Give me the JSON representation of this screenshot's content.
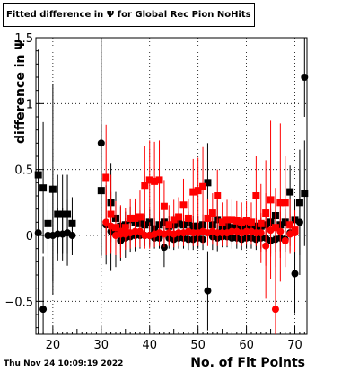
{
  "chart_data": {
    "type": "scatter",
    "title_prefix": "Fitted difference in",
    "title_symbol": "Ψ",
    "title_suffix": "for Global Rec Pion NoHits",
    "ylabel": "difference in  Ψ",
    "xlabel": "No. of Fit Points",
    "xlim": [
      16.5,
      72.5
    ],
    "ylim": [
      -0.75,
      1.5
    ],
    "x_ticks": [
      20,
      30,
      40,
      50,
      60,
      70
    ],
    "y_ticks": [
      -0.5,
      0,
      0.5,
      1,
      1.5
    ],
    "y_tick_labels": [
      "−0.5",
      "0",
      "0.5",
      "1",
      "1.5"
    ],
    "grid": true,
    "series": [
      {
        "marker": "square",
        "color": "#000000",
        "points": [
          [
            17,
            0.46,
            0.95
          ],
          [
            18,
            0.36,
            0.5
          ],
          [
            19,
            0.09,
            0.2
          ],
          [
            20,
            0.35,
            0.8
          ],
          [
            21,
            0.16,
            0.3
          ],
          [
            22,
            0.16,
            0.3
          ],
          [
            23,
            0.16,
            0.3
          ],
          [
            24,
            0.09,
            0.2
          ],
          [
            30,
            0.34,
            0.5
          ],
          [
            32,
            0.25,
            0.3
          ],
          [
            33,
            0.13,
            0.2
          ],
          [
            34,
            0.07,
            0.15
          ],
          [
            35,
            0.08,
            0.1
          ],
          [
            36,
            0.12,
            0.1
          ],
          [
            37,
            0.1,
            0.15
          ],
          [
            38,
            0.09,
            0.1
          ],
          [
            39,
            0.08,
            0.08
          ],
          [
            40,
            0.1,
            0.1
          ],
          [
            41,
            0.05,
            0.08
          ],
          [
            42,
            0.08,
            0.1
          ],
          [
            43,
            0.1,
            0.1
          ],
          [
            44,
            0.07,
            0.08
          ],
          [
            45,
            0.08,
            0.08
          ],
          [
            46,
            0.09,
            0.08
          ],
          [
            47,
            0.08,
            0.08
          ],
          [
            48,
            0.1,
            0.08
          ],
          [
            49,
            0.07,
            0.08
          ],
          [
            50,
            0.07,
            0.08
          ],
          [
            51,
            0.08,
            0.08
          ],
          [
            52,
            0.4,
            0.3
          ],
          [
            53,
            0.08,
            0.08
          ],
          [
            54,
            0.12,
            0.15
          ],
          [
            55,
            0.06,
            0.06
          ],
          [
            56,
            0.07,
            0.06
          ],
          [
            57,
            0.06,
            0.06
          ],
          [
            58,
            0.07,
            0.06
          ],
          [
            59,
            0.07,
            0.06
          ],
          [
            60,
            0.06,
            0.06
          ],
          [
            61,
            0.07,
            0.06
          ],
          [
            62,
            0.07,
            0.06
          ],
          [
            63,
            0.07,
            0.06
          ],
          [
            64,
            0.08,
            0.1
          ],
          [
            65,
            0.1,
            0.1
          ],
          [
            66,
            0.15,
            0.1
          ],
          [
            67,
            0.08,
            0.1
          ],
          [
            68,
            0.1,
            0.1
          ],
          [
            69,
            0.33,
            0.2
          ],
          [
            70,
            0.12,
            0.15
          ],
          [
            71,
            0.25,
            0.4
          ],
          [
            72,
            0.32,
            0.4
          ]
        ]
      },
      {
        "marker": "circle",
        "color": "#000000",
        "points": [
          [
            17,
            0.02,
            0.85
          ],
          [
            18,
            -0.56,
            0.4
          ],
          [
            19,
            0.0,
            0.2
          ],
          [
            20,
            0.0,
            0.35
          ],
          [
            21,
            0.01,
            0.2
          ],
          [
            22,
            0.01,
            0.2
          ],
          [
            23,
            0.02,
            0.25
          ],
          [
            24,
            0.0,
            0.15
          ],
          [
            30,
            0.7,
            0.85
          ],
          [
            31,
            0.08,
            0.3
          ],
          [
            32,
            0.03,
            0.3
          ],
          [
            33,
            0.01,
            0.25
          ],
          [
            34,
            -0.04,
            0.15
          ],
          [
            35,
            -0.02,
            0.15
          ],
          [
            36,
            -0.01,
            0.12
          ],
          [
            37,
            0.0,
            0.12
          ],
          [
            38,
            0.0,
            0.1
          ],
          [
            39,
            0.0,
            0.08
          ],
          [
            40,
            0.0,
            0.08
          ],
          [
            41,
            -0.02,
            0.08
          ],
          [
            42,
            -0.02,
            0.08
          ],
          [
            43,
            -0.09,
            0.15
          ],
          [
            44,
            -0.02,
            0.08
          ],
          [
            45,
            -0.03,
            0.08
          ],
          [
            46,
            -0.02,
            0.08
          ],
          [
            47,
            -0.02,
            0.08
          ],
          [
            48,
            -0.03,
            0.08
          ],
          [
            49,
            -0.03,
            0.08
          ],
          [
            50,
            -0.02,
            0.08
          ],
          [
            51,
            -0.03,
            0.08
          ],
          [
            52,
            -0.42,
            0.3
          ],
          [
            53,
            -0.01,
            0.1
          ],
          [
            54,
            -0.02,
            0.1
          ],
          [
            55,
            -0.01,
            0.08
          ],
          [
            56,
            -0.01,
            0.08
          ],
          [
            57,
            -0.02,
            0.08
          ],
          [
            58,
            -0.02,
            0.08
          ],
          [
            59,
            -0.03,
            0.08
          ],
          [
            60,
            -0.02,
            0.08
          ],
          [
            61,
            -0.02,
            0.08
          ],
          [
            62,
            -0.03,
            0.08
          ],
          [
            63,
            -0.02,
            0.08
          ],
          [
            64,
            -0.02,
            0.1
          ],
          [
            65,
            -0.04,
            0.1
          ],
          [
            66,
            -0.03,
            0.1
          ],
          [
            67,
            -0.02,
            0.1
          ],
          [
            68,
            -0.03,
            0.1
          ],
          [
            69,
            0.02,
            0.1
          ],
          [
            70,
            -0.29,
            0.3
          ],
          [
            71,
            0.1,
            0.4
          ],
          [
            72,
            1.2,
            0.3
          ]
        ]
      },
      {
        "marker": "square",
        "color": "#ff0000",
        "points": [
          [
            31,
            0.44,
            0.4
          ],
          [
            32,
            0.16,
            0.3
          ],
          [
            33,
            0.06,
            0.2
          ],
          [
            34,
            0.03,
            0.2
          ],
          [
            35,
            0.06,
            0.15
          ],
          [
            36,
            0.13,
            0.15
          ],
          [
            37,
            0.13,
            0.15
          ],
          [
            38,
            0.14,
            0.2
          ],
          [
            39,
            0.38,
            0.3
          ],
          [
            40,
            0.42,
            0.3
          ],
          [
            41,
            0.41,
            0.3
          ],
          [
            42,
            0.42,
            0.3
          ],
          [
            43,
            0.22,
            0.2
          ],
          [
            44,
            0.08,
            0.15
          ],
          [
            45,
            0.12,
            0.15
          ],
          [
            46,
            0.14,
            0.15
          ],
          [
            47,
            0.23,
            0.2
          ],
          [
            48,
            0.13,
            0.15
          ],
          [
            49,
            0.33,
            0.25
          ],
          [
            50,
            0.34,
            0.25
          ],
          [
            51,
            0.37,
            0.3
          ],
          [
            52,
            0.13,
            0.15
          ],
          [
            53,
            0.17,
            0.15
          ],
          [
            54,
            0.3,
            0.2
          ],
          [
            55,
            0.1,
            0.15
          ],
          [
            56,
            0.12,
            0.15
          ],
          [
            57,
            0.12,
            0.15
          ],
          [
            58,
            0.11,
            0.15
          ],
          [
            59,
            0.1,
            0.15
          ],
          [
            60,
            0.11,
            0.15
          ],
          [
            61,
            0.1,
            0.15
          ],
          [
            62,
            0.3,
            0.3
          ],
          [
            63,
            0.09,
            0.3
          ],
          [
            64,
            0.17,
            0.4
          ],
          [
            65,
            0.27,
            0.6
          ],
          [
            66,
            0.06,
            0.3
          ],
          [
            67,
            0.25,
            0.6
          ],
          [
            68,
            0.25,
            0.35
          ],
          [
            69,
            0.08,
            0.2
          ],
          [
            70,
            0.04,
            0.15
          ]
        ]
      },
      {
        "marker": "circle",
        "color": "#ff0000",
        "points": [
          [
            31,
            0.1,
            0.25
          ],
          [
            32,
            0.07,
            0.2
          ],
          [
            33,
            0.0,
            0.15
          ],
          [
            34,
            0.01,
            0.15
          ],
          [
            35,
            0.01,
            0.12
          ],
          [
            36,
            0.02,
            0.12
          ],
          [
            37,
            0.03,
            0.12
          ],
          [
            38,
            0.03,
            0.12
          ],
          [
            39,
            0.0,
            0.1
          ],
          [
            40,
            0.0,
            0.1
          ],
          [
            41,
            0.01,
            0.1
          ],
          [
            42,
            0.02,
            0.1
          ],
          [
            43,
            0.01,
            0.1
          ],
          [
            44,
            0.02,
            0.1
          ],
          [
            45,
            0.01,
            0.1
          ],
          [
            46,
            0.02,
            0.1
          ],
          [
            47,
            0.02,
            0.1
          ],
          [
            48,
            0.03,
            0.1
          ],
          [
            49,
            0.02,
            0.1
          ],
          [
            50,
            0.02,
            0.1
          ],
          [
            51,
            0.03,
            0.1
          ],
          [
            52,
            0.02,
            0.1
          ],
          [
            53,
            0.03,
            0.1
          ],
          [
            54,
            0.02,
            0.1
          ],
          [
            55,
            0.02,
            0.1
          ],
          [
            56,
            0.02,
            0.1
          ],
          [
            57,
            0.03,
            0.1
          ],
          [
            58,
            0.03,
            0.1
          ],
          [
            59,
            0.02,
            0.1
          ],
          [
            60,
            0.03,
            0.1
          ],
          [
            61,
            0.03,
            0.1
          ],
          [
            62,
            0.02,
            0.1
          ],
          [
            63,
            0.02,
            0.15
          ],
          [
            64,
            -0.08,
            0.4
          ],
          [
            65,
            0.04,
            0.2
          ],
          [
            66,
            -0.56,
            0.5
          ],
          [
            67,
            0.03,
            0.2
          ],
          [
            68,
            -0.04,
            0.2
          ],
          [
            69,
            0.01,
            0.15
          ],
          [
            70,
            0.02,
            0.15
          ]
        ]
      }
    ]
  },
  "footer": {
    "timestamp": "Thu Nov 24 10:09:19 2022"
  }
}
